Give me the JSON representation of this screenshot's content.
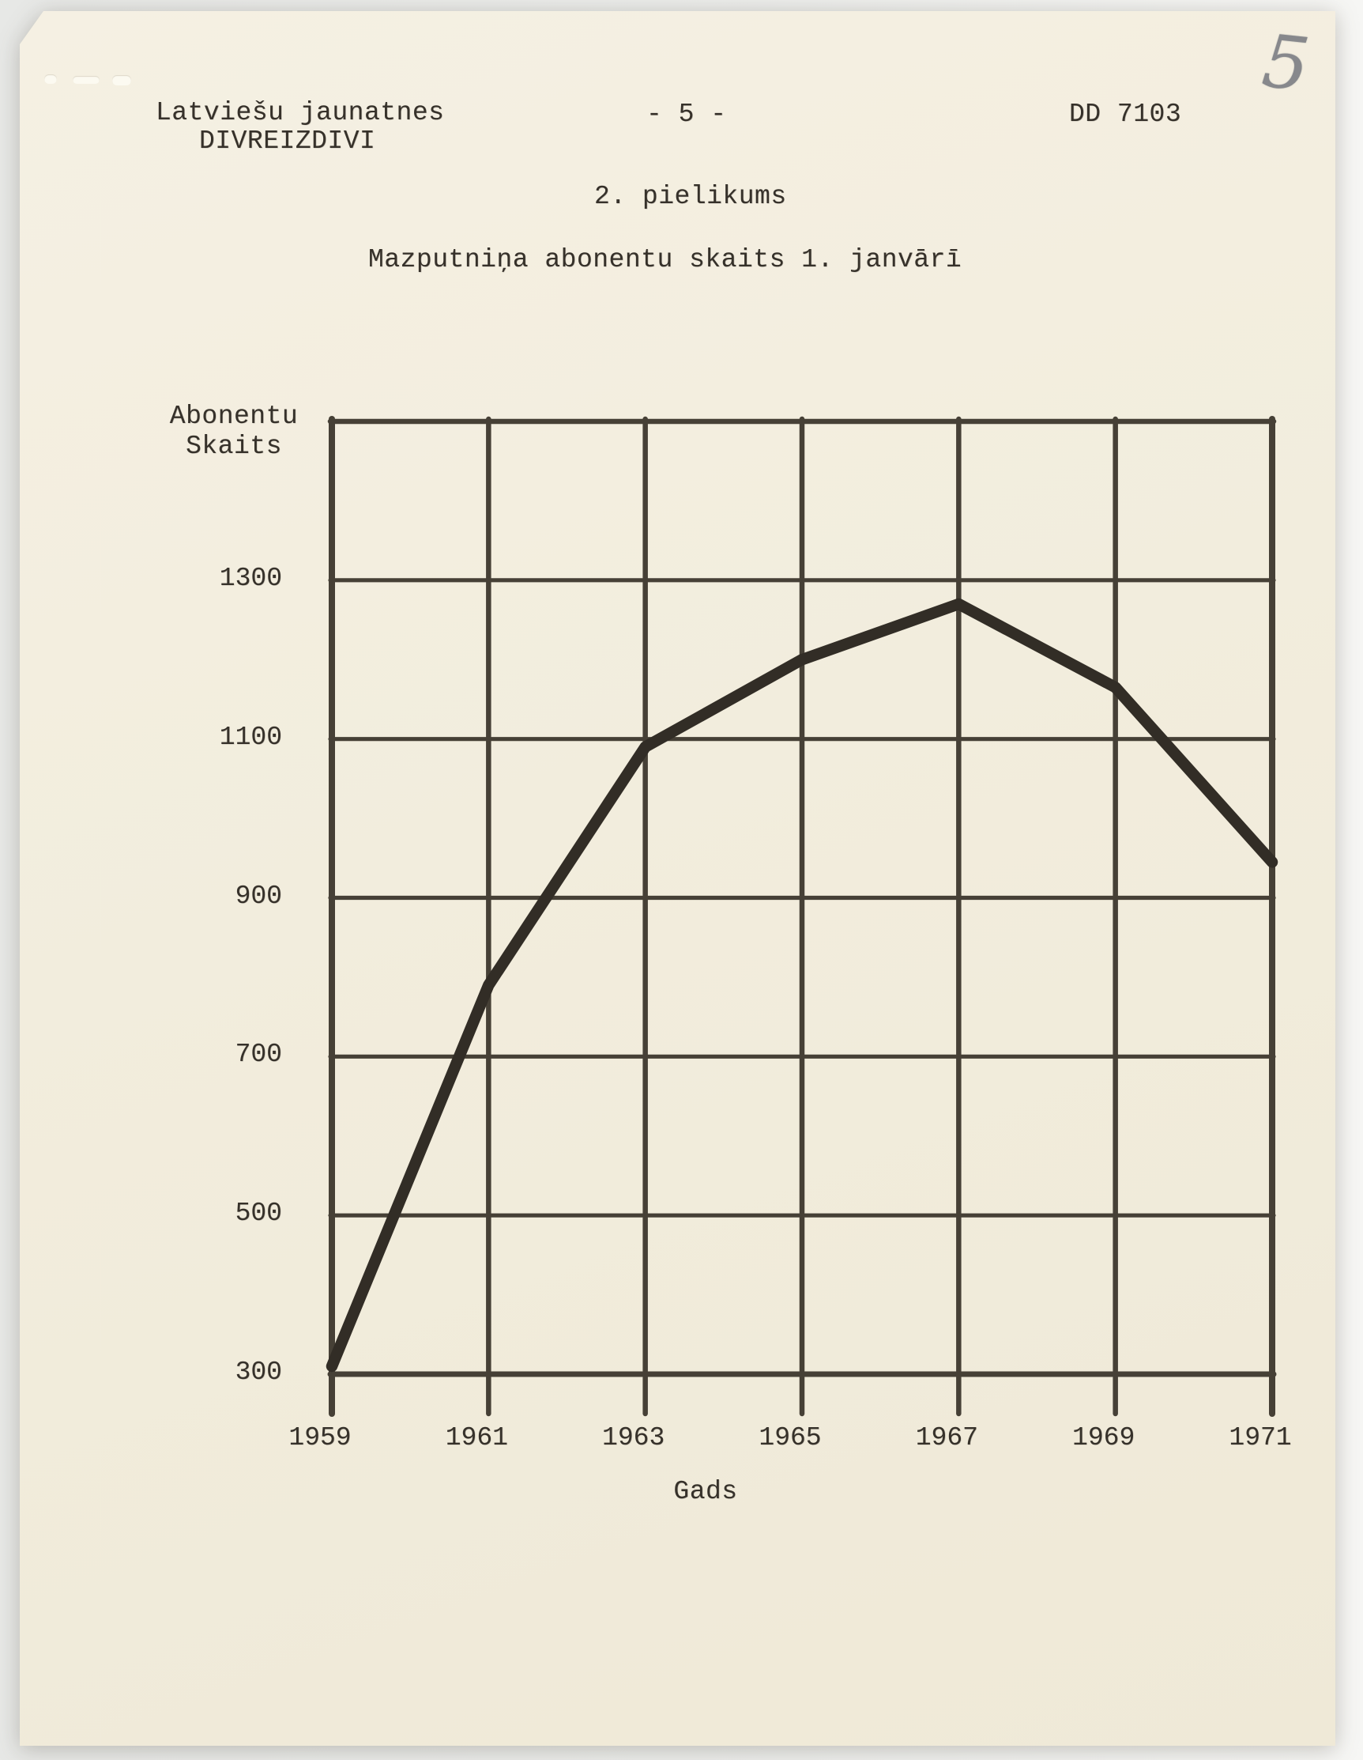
{
  "page": {
    "header_left_line1": "Latviešu jaunatnes",
    "header_left_line2": "DIVREIZDIVI",
    "page_number": "- 5 -",
    "doc_ref": "DD 7103",
    "handwritten_page_mark": "5",
    "appendix_label": "2. pielikums",
    "title": "Mazputniņa abonentu skaits 1. janvārī"
  },
  "chart_data": {
    "type": "line",
    "title": "Mazputniņa abonentu skaits 1. janvārī",
    "xlabel": "Gads",
    "ylabel": "Abonentu Skaits",
    "ylabel_lines": [
      "Abonentu",
      "Skaits"
    ],
    "x": [
      1959,
      1961,
      1963,
      1965,
      1967,
      1969,
      1971
    ],
    "values": [
      310,
      790,
      1090,
      1200,
      1270,
      1165,
      945
    ],
    "x_tick_labels": [
      "1959",
      "1961",
      "1963",
      "1965",
      "1967",
      "1969",
      "1971"
    ],
    "y_ticks": [
      300,
      500,
      700,
      900,
      1100,
      1300
    ],
    "ylim": [
      300,
      1500
    ],
    "xlim": [
      1959,
      1971
    ],
    "grid": true,
    "legend": "none",
    "series_name": "Abonentu skaits 1. janvārī"
  },
  "colors": {
    "paper": "#f2eddd",
    "scan_background": "#ebecea",
    "ink_text": "#36312a",
    "grid_line": "#464036",
    "data_line": "#322d26",
    "pencil": "#87888c"
  }
}
